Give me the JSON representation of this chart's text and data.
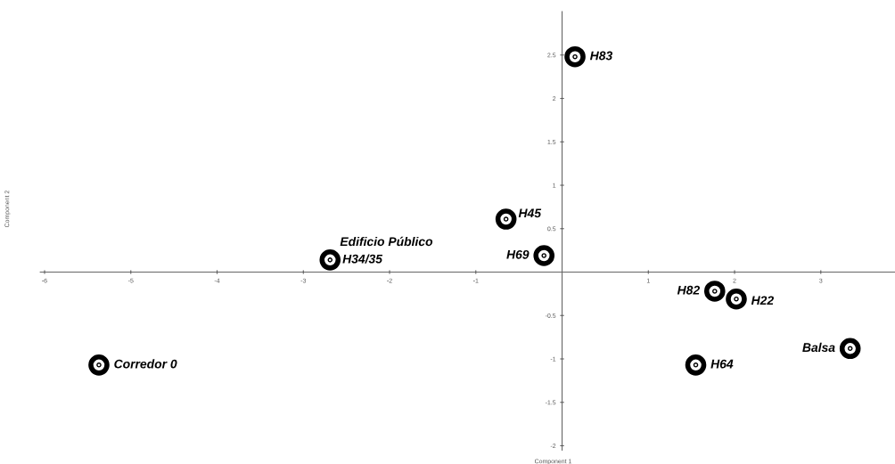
{
  "chart_data": {
    "type": "scatter",
    "xlabel": "Component 1",
    "ylabel": "Component 2",
    "x": [
      -5.37,
      -2.69,
      -0.65,
      -0.21,
      0.15,
      1.77,
      2.02,
      1.55,
      3.34
    ],
    "values": [
      -1.07,
      0.14,
      0.61,
      0.19,
      2.48,
      -0.22,
      -0.31,
      -1.07,
      -0.88
    ],
    "color": "#000000",
    "marker": "circle",
    "xlim": [
      -6.05,
      3.86
    ],
    "ylim": [
      -2.05,
      3.0
    ],
    "xticks": [
      -6,
      -5,
      -4,
      -3,
      -2,
      -1,
      1,
      2,
      3
    ],
    "yticks": [
      -2,
      -1.5,
      -1,
      -0.5,
      0.5,
      1,
      1.5,
      2,
      2.5
    ],
    "annotations": [
      {
        "text": "Corredor 0",
        "x": -5.37,
        "y": -1.07
      },
      {
        "text": "Edificio Público",
        "x": -2.69,
        "y": 0.14
      },
      {
        "text": "H34/35",
        "x": -2.69,
        "y": 0.14
      },
      {
        "text": "H45",
        "x": -0.65,
        "y": 0.61
      },
      {
        "text": "H69",
        "x": -0.21,
        "y": 0.19
      },
      {
        "text": "H83",
        "x": 0.15,
        "y": 2.48
      },
      {
        "text": "H82",
        "x": 1.77,
        "y": -0.22
      },
      {
        "text": "H22",
        "x": 2.02,
        "y": -0.31
      },
      {
        "text": "H64",
        "x": 1.55,
        "y": -1.07
      },
      {
        "text": "Balsa",
        "x": 3.34,
        "y": -0.88
      }
    ]
  }
}
